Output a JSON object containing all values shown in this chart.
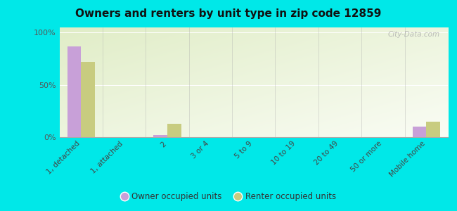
{
  "title": "Owners and renters by unit type in zip code 12859",
  "categories": [
    "1, detached",
    "1, attached",
    "2",
    "3 or 4",
    "5 to 9",
    "10 to 19",
    "20 to 49",
    "50 or more",
    "Mobile home"
  ],
  "owner_values": [
    87,
    0,
    2,
    0,
    0,
    0,
    0,
    0,
    10
  ],
  "renter_values": [
    72,
    0,
    13,
    0,
    0,
    0,
    0,
    0,
    15
  ],
  "owner_color": "#c8a0d8",
  "renter_color": "#c8cc80",
  "background_color": "#00e8e8",
  "plot_bg_color": "#e8f0c0",
  "yticks": [
    0,
    50,
    100
  ],
  "ylim": [
    0,
    105
  ],
  "legend_owner": "Owner occupied units",
  "legend_renter": "Renter occupied units",
  "watermark": "City-Data.com",
  "bar_width": 0.32
}
